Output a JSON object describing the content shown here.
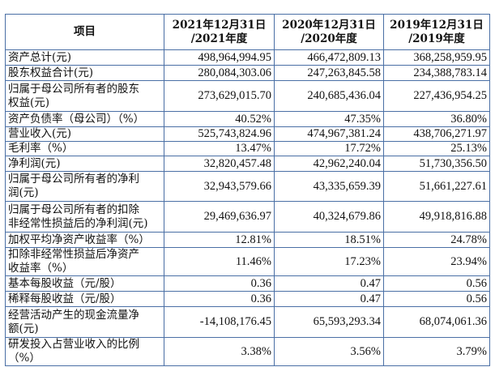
{
  "table": {
    "headers": [
      {
        "lines": [
          "项目"
        ]
      },
      {
        "lines": [
          "2021年12月31日",
          "/2021年度"
        ]
      },
      {
        "lines": [
          "2020年12月31日",
          "/2020年度"
        ]
      },
      {
        "lines": [
          "2019年12月31日",
          "/2019年度"
        ]
      }
    ],
    "rows": [
      {
        "label": [
          "资产总计(元)"
        ],
        "values": [
          "498,964,994.95",
          "466,472,809.13",
          "368,258,959.95"
        ]
      },
      {
        "label": [
          "股东权益合计(元)"
        ],
        "values": [
          "280,084,303.06",
          "247,263,845.58",
          "234,388,783.14"
        ]
      },
      {
        "label": [
          "归属于母公司所有者的股东",
          "权益(元)"
        ],
        "values": [
          "273,629,015.70",
          "240,685,436.04",
          "227,436,954.25"
        ]
      },
      {
        "label": [
          "资产负债率（母公司）（%）"
        ],
        "values": [
          "40.52%",
          "47.35%",
          "36.80%"
        ]
      },
      {
        "label": [
          "营业收入(元)"
        ],
        "values": [
          "525,743,824.96",
          "474,967,381.24",
          "438,706,271.97"
        ]
      },
      {
        "label": [
          "毛利率（%）"
        ],
        "values": [
          "13.47%",
          "17.72%",
          "25.13%"
        ]
      },
      {
        "label": [
          "净利润(元)"
        ],
        "values": [
          "32,820,457.48",
          "42,962,240.04",
          "51,730,356.50"
        ]
      },
      {
        "label": [
          "归属于母公司所有者的净利",
          "润(元)"
        ],
        "values": [
          "32,943,579.66",
          "43,335,659.39",
          "51,661,227.61"
        ]
      },
      {
        "label": [
          "归属于母公司所有者的扣除",
          "非经常性损益后的净利润(元)"
        ],
        "values": [
          "29,469,636.97",
          "40,324,679.86",
          "49,918,816.88"
        ]
      },
      {
        "label": [
          "加权平均净资产收益率（%）"
        ],
        "values": [
          "12.81%",
          "18.51%",
          "24.78%"
        ]
      },
      {
        "label": [
          "扣除非经常性损益后净资产",
          "收益率（%）"
        ],
        "values": [
          "11.46%",
          "17.23%",
          "23.94%"
        ]
      },
      {
        "label": [
          "基本每股收益（元/股）"
        ],
        "values": [
          "0.36",
          "0.47",
          "0.56"
        ]
      },
      {
        "label": [
          "稀释每股收益（元/股）"
        ],
        "values": [
          "0.36",
          "0.47",
          "0.56"
        ]
      },
      {
        "label": [
          "经营活动产生的现金流量净",
          "额(元)"
        ],
        "values": [
          "-14,108,176.45",
          "65,593,293.34",
          "68,074,061.36"
        ]
      },
      {
        "label": [
          "研发投入占营业收入的比例",
          "（%）"
        ],
        "values": [
          "3.38%",
          "3.56%",
          "3.79%"
        ]
      }
    ]
  }
}
